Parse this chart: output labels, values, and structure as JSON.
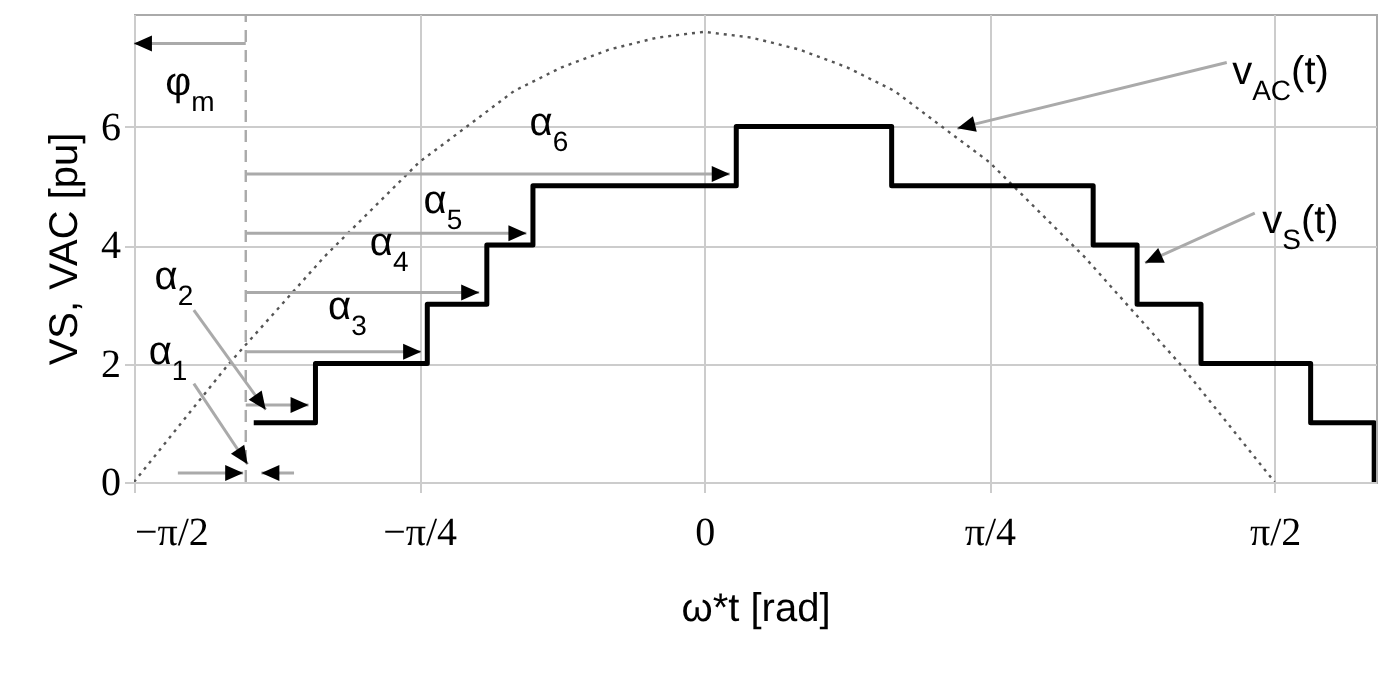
{
  "chart_data": {
    "type": "line",
    "xlabel": "ω*t [rad]",
    "ylabel": "VS, VAC [pu]",
    "xlim": [
      -1.5708,
      1.85
    ],
    "ylim": [
      0,
      7.9
    ],
    "xticks": [
      {
        "value": -1.5708,
        "label": "−π/2"
      },
      {
        "value": -0.7854,
        "label": "−π/4"
      },
      0,
      {
        "value": 0.7854,
        "label": "π/4"
      },
      {
        "value": 1.5708,
        "label": "π/2"
      }
    ],
    "yticks": [
      0,
      2,
      4,
      6
    ],
    "grid": true,
    "series": [
      {
        "type": "line",
        "color": "#555555",
        "line_style": "dotted",
        "x": [
          -1.5708,
          -1.44,
          -1.309,
          -1.178,
          -1.047,
          -0.916,
          -0.785,
          -0.654,
          -0.524,
          -0.393,
          -0.262,
          -0.131,
          0,
          0.131,
          0.262,
          0.393,
          0.524,
          0.654,
          0.785,
          0.916,
          1.047,
          1.178,
          1.309,
          1.44,
          1.5708
        ],
        "values": [
          0,
          1.0,
          2.0,
          2.9,
          3.8,
          4.6,
          5.4,
          6.0,
          6.6,
          7.0,
          7.3,
          7.5,
          7.6,
          7.5,
          7.3,
          7.0,
          6.6,
          6.0,
          5.4,
          4.6,
          3.8,
          2.9,
          2.0,
          1.0,
          0
        ]
      },
      {
        "type": "step",
        "color": "#000000",
        "x": [
          -1.241,
          -1.071,
          -0.763,
          -0.599,
          -0.472,
          0.088,
          0.516,
          1.071,
          1.192,
          1.368,
          1.67,
          1.845
        ],
        "values": [
          1,
          2,
          3,
          4,
          5,
          6,
          5,
          4,
          3,
          2,
          1,
          0
        ]
      },
      {
        "type": "line",
        "color": "#aaaaaa",
        "line_style": "dashed",
        "x": [
          -1.263,
          -1.263
        ],
        "values": [
          0,
          7.9
        ]
      }
    ],
    "annotations": [
      "φ$_{m}$",
      {
        "text": "α$_{1}$",
        "x": -1.258,
        "y": 0.3
      },
      "α$_{2}$",
      "α$_{3}$",
      "α$_{4}$",
      "α$_{5}$",
      "α$_{6}$",
      {
        "text": "v$_{AC}$(t)",
        "x": 0.697,
        "y": 5.97
      },
      {
        "text": "v$_{S}$(t)",
        "x": 1.214,
        "y": 3.7
      }
    ]
  }
}
